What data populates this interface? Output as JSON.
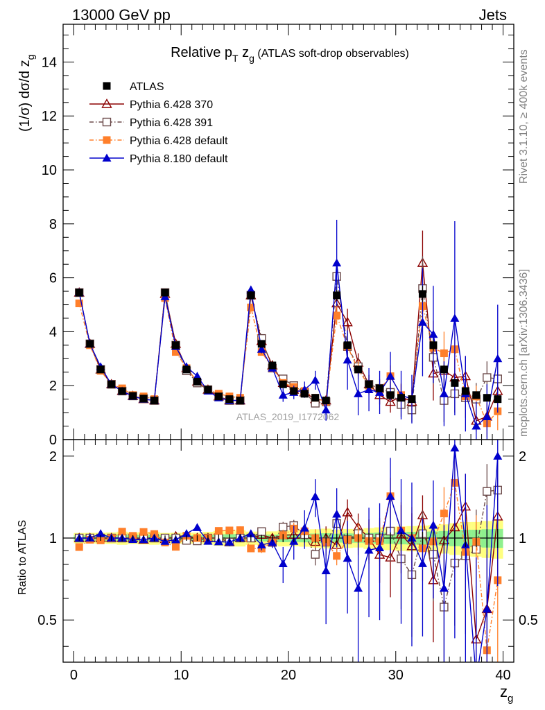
{
  "header": {
    "energy": "13000 GeV pp",
    "process": "Jets"
  },
  "side_text": {
    "rivet": "Rivet 3.1.10, ≥ 400k events",
    "mcplots": "mcplots.cern.ch [arXiv:1306.3436]"
  },
  "analysis_id": "ATLAS_2019_I1772062",
  "chart_data": {
    "type": "scatter",
    "title": "Relative pT zg (ATLAS soft-drop observables)",
    "xlabel": "z_g",
    "ylabel": "(1/σ) dσ/d z_g",
    "ratio_ylabel": "Ratio to ATLAS",
    "xlim": [
      -1,
      41
    ],
    "ylim": [
      0,
      15.4
    ],
    "ratio_ylim": [
      0.35,
      2.3
    ],
    "ratio_scale": "log",
    "x_ticks": [
      0,
      10,
      20,
      30,
      40
    ],
    "y_ticks": [
      0,
      2,
      4,
      6,
      8,
      10,
      12,
      14
    ],
    "ratio_ticks": [
      0.5,
      1,
      2
    ],
    "legend_position": "top-left",
    "x": [
      0.5,
      1.5,
      2.5,
      3.5,
      4.5,
      5.5,
      6.5,
      7.5,
      8.5,
      9.5,
      10.5,
      11.5,
      12.5,
      13.5,
      14.5,
      15.5,
      16.5,
      17.5,
      18.5,
      19.5,
      20.5,
      21.5,
      22.5,
      23.5,
      24.5,
      25.5,
      26.5,
      27.5,
      28.5,
      29.5,
      30.5,
      31.5,
      32.5,
      33.5,
      34.5,
      35.5,
      36.5,
      37.5,
      38.5,
      39.5
    ],
    "series": [
      {
        "name": "ATLAS",
        "color": "#000000",
        "marker": "square-filled",
        "values": [
          5.45,
          3.55,
          2.6,
          2.05,
          1.8,
          1.62,
          1.52,
          1.45,
          5.45,
          3.5,
          2.6,
          2.15,
          1.85,
          1.6,
          1.5,
          1.45,
          5.35,
          3.55,
          2.75,
          2.05,
          1.8,
          1.7,
          1.55,
          1.45,
          5.35,
          3.5,
          2.6,
          2.05,
          1.9,
          1.65,
          1.55,
          1.5,
          5.4,
          3.5,
          2.6,
          2.1,
          1.8,
          1.65,
          1.55,
          1.5
        ],
        "errors": [
          0.12,
          0.08,
          0.06,
          0.05,
          0.05,
          0.04,
          0.04,
          0.04,
          0.12,
          0.08,
          0.06,
          0.05,
          0.05,
          0.05,
          0.05,
          0.05,
          0.15,
          0.1,
          0.08,
          0.07,
          0.06,
          0.06,
          0.06,
          0.06,
          0.2,
          0.14,
          0.1,
          0.09,
          0.09,
          0.08,
          0.08,
          0.08,
          0.3,
          0.2,
          0.16,
          0.14,
          0.13,
          0.12,
          0.12,
          0.12
        ]
      },
      {
        "name": "Pythia 6.428 370",
        "color": "#8b0000",
        "marker": "triangle-open",
        "line": "solid",
        "values": [
          5.45,
          3.55,
          2.6,
          2.05,
          1.8,
          1.62,
          1.5,
          1.45,
          5.4,
          3.55,
          2.65,
          2.15,
          1.85,
          1.6,
          1.45,
          1.45,
          5.35,
          3.65,
          2.75,
          2.1,
          1.85,
          1.75,
          1.5,
          1.45,
          5.05,
          4.35,
          2.85,
          2.05,
          1.65,
          1.4,
          1.6,
          1.4,
          6.55,
          2.45,
          2.55,
          2.3,
          2.35,
          0.7,
          0.85,
          1.8
        ],
        "errors": [
          0.05,
          0.05,
          0.04,
          0.04,
          0.04,
          0.04,
          0.04,
          0.04,
          0.06,
          0.05,
          0.04,
          0.04,
          0.04,
          0.04,
          0.05,
          0.05,
          0.12,
          0.12,
          0.1,
          0.1,
          0.1,
          0.12,
          0.12,
          0.15,
          0.35,
          0.5,
          0.35,
          0.35,
          0.35,
          0.4,
          0.45,
          0.45,
          1.2,
          1.0,
          0.8,
          0.7,
          0.75,
          0.4,
          0.5,
          0.7
        ]
      },
      {
        "name": "Pythia 6.428 391",
        "color": "#6b4a4a",
        "marker": "square-open",
        "line": "dashdot",
        "values": [
          5.45,
          3.55,
          2.6,
          2.05,
          1.8,
          1.62,
          1.52,
          1.45,
          5.45,
          3.5,
          2.55,
          2.1,
          1.85,
          1.6,
          1.45,
          1.45,
          5.35,
          3.75,
          2.65,
          2.25,
          2.0,
          1.75,
          1.35,
          1.4,
          6.05,
          3.45,
          2.7,
          2.05,
          1.9,
          1.75,
          1.3,
          1.1,
          5.6,
          3.05,
          1.45,
          1.7,
          1.55,
          1.5,
          2.3,
          2.25
        ],
        "errors": [
          0.05,
          0.05,
          0.04,
          0.04,
          0.04,
          0.04,
          0.04,
          0.04,
          0.06,
          0.05,
          0.04,
          0.04,
          0.04,
          0.04,
          0.05,
          0.05,
          0.12,
          0.12,
          0.1,
          0.1,
          0.1,
          0.12,
          0.12,
          0.15,
          0.4,
          0.5,
          0.35,
          0.35,
          0.35,
          0.4,
          0.45,
          0.45,
          1.2,
          1.0,
          0.8,
          0.7,
          0.75,
          0.6,
          0.6,
          0.8
        ]
      },
      {
        "name": "Pythia 6.428 default",
        "color": "#ff7f2a",
        "marker": "square-filled",
        "line": "dashdot",
        "values": [
          5.05,
          3.5,
          2.55,
          2.05,
          1.9,
          1.65,
          1.6,
          1.5,
          5.25,
          3.25,
          2.65,
          2.15,
          1.85,
          1.7,
          1.6,
          1.55,
          4.9,
          3.25,
          2.65,
          2.1,
          1.95,
          1.8,
          1.55,
          1.4,
          4.6,
          3.45,
          2.6,
          2.0,
          1.85,
          2.35,
          1.65,
          1.5,
          4.95,
          3.4,
          3.2,
          3.35,
          1.6,
          1.6,
          0.6,
          1.05
        ],
        "errors": [
          0.05,
          0.05,
          0.04,
          0.04,
          0.04,
          0.04,
          0.04,
          0.04,
          0.06,
          0.05,
          0.04,
          0.04,
          0.04,
          0.04,
          0.05,
          0.05,
          0.12,
          0.12,
          0.1,
          0.1,
          0.1,
          0.12,
          0.12,
          0.15,
          0.35,
          0.5,
          0.35,
          0.35,
          0.35,
          0.4,
          0.45,
          0.45,
          1.2,
          1.0,
          0.8,
          0.7,
          0.75,
          0.4,
          0.5,
          0.7
        ]
      },
      {
        "name": "Pythia 8.180 default",
        "color": "#0000cc",
        "marker": "triangle-filled",
        "line": "solid",
        "values": [
          5.45,
          3.55,
          2.7,
          2.05,
          1.8,
          1.6,
          1.5,
          1.45,
          5.3,
          3.45,
          2.7,
          2.35,
          1.8,
          1.55,
          1.45,
          1.45,
          5.55,
          3.35,
          2.65,
          1.65,
          1.75,
          1.85,
          2.2,
          1.1,
          6.55,
          2.95,
          1.7,
          1.85,
          1.75,
          2.35,
          1.65,
          1.5,
          4.35,
          3.9,
          1.7,
          4.5,
          1.7,
          0.5,
          0.85,
          3.0
        ],
        "errors": [
          0.05,
          0.05,
          0.04,
          0.04,
          0.04,
          0.04,
          0.04,
          0.04,
          0.06,
          0.05,
          0.04,
          0.04,
          0.04,
          0.04,
          0.05,
          0.05,
          0.15,
          0.15,
          0.12,
          0.25,
          0.25,
          0.3,
          0.35,
          0.4,
          1.6,
          1.1,
          0.8,
          0.8,
          0.8,
          0.9,
          0.9,
          0.9,
          2.0,
          1.8,
          1.2,
          3.6,
          1.4,
          0.9,
          1.2,
          2.0
        ]
      }
    ]
  }
}
